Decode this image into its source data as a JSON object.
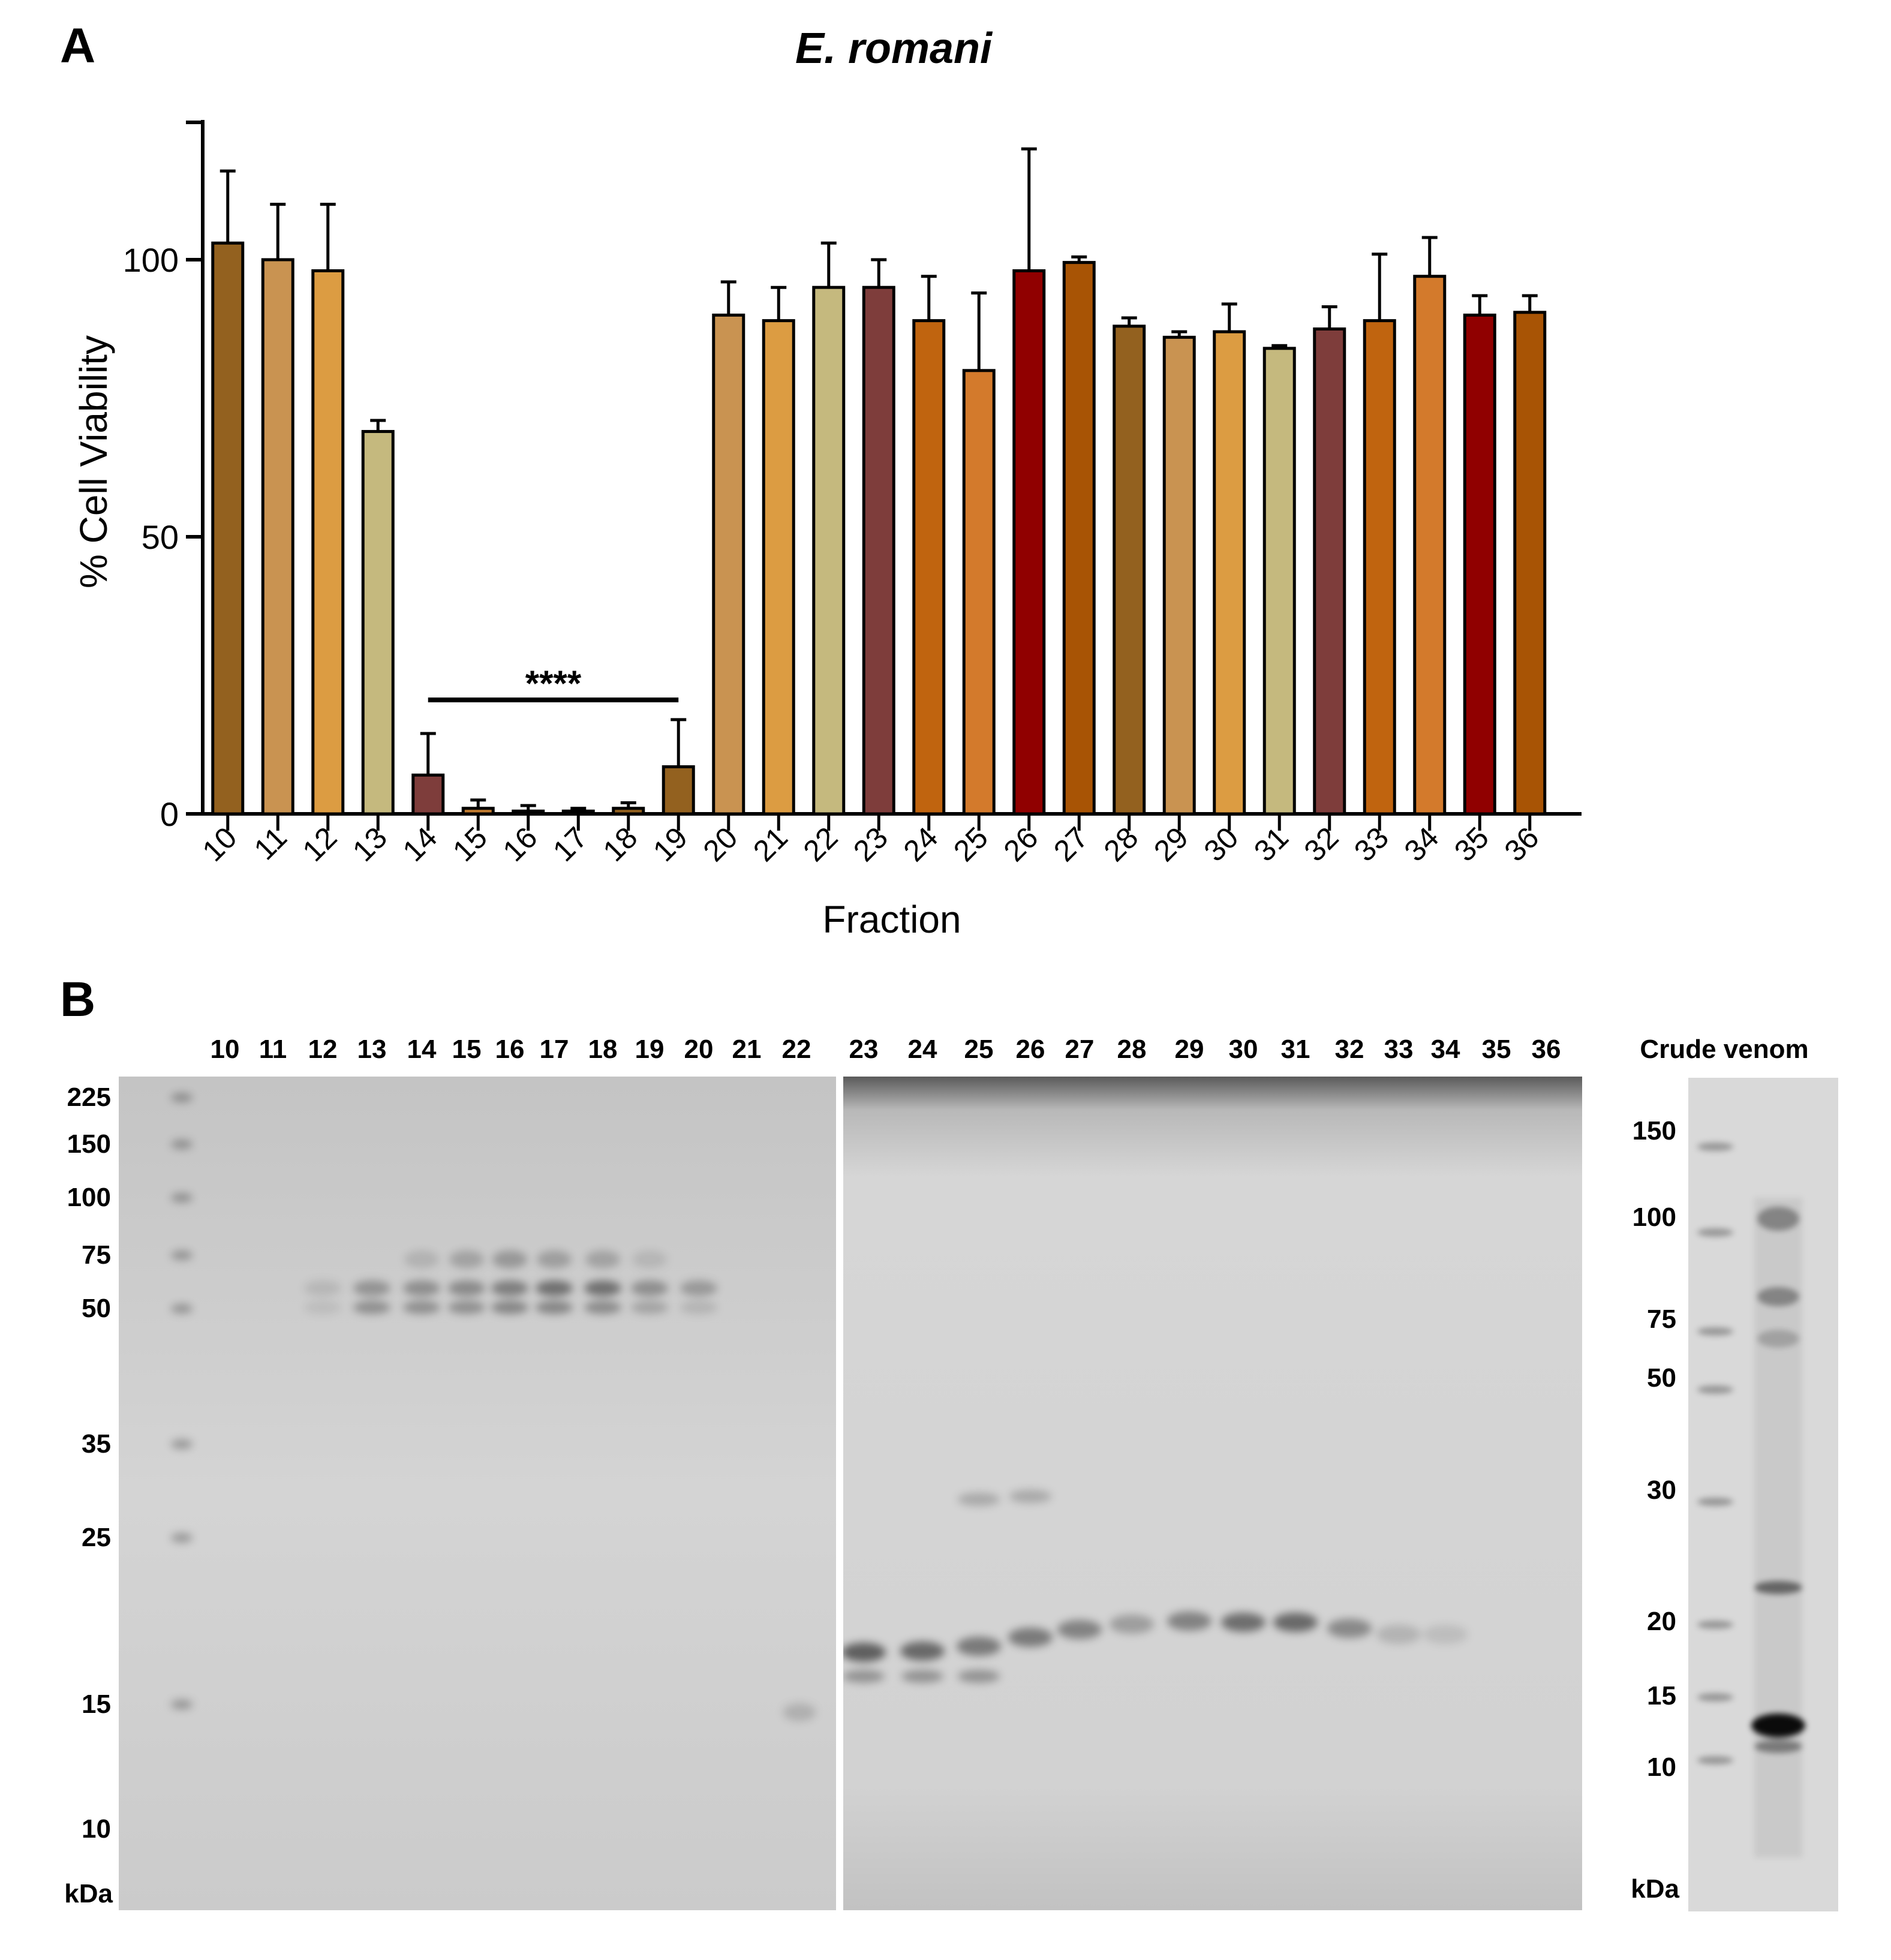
{
  "panels": {
    "a_label": "A",
    "b_label": "B"
  },
  "chart_data": {
    "type": "bar",
    "title": "E. romani",
    "xlabel": "Fraction",
    "ylabel": "% Cell Viability",
    "ylim": [
      0,
      125
    ],
    "yticks": [
      "0",
      "50",
      "100"
    ],
    "categories": [
      "10",
      "11",
      "12",
      "13",
      "14",
      "15",
      "16",
      "17",
      "18",
      "19",
      "20",
      "21",
      "22",
      "23",
      "24",
      "25",
      "26",
      "27",
      "28",
      "29",
      "30",
      "31",
      "32",
      "33",
      "34",
      "35",
      "36"
    ],
    "values": [
      103,
      100,
      98,
      69,
      7,
      1,
      0.5,
      0.5,
      1,
      8.5,
      90,
      89,
      95,
      95,
      89,
      80,
      98,
      99.5,
      88,
      86,
      87,
      84,
      87.5,
      89,
      97,
      90,
      90.5
    ],
    "errors": [
      13,
      10,
      12,
      2,
      7.5,
      1.5,
      1,
      0.5,
      1,
      8.5,
      6,
      6,
      8,
      5,
      8,
      14,
      22,
      1,
      1.5,
      1,
      5,
      0.5,
      4,
      12,
      7,
      3.5,
      3
    ],
    "bar_colors": [
      "#93611f",
      "#c99351",
      "#dc9c42",
      "#c5b97e",
      "#7e3d3b",
      "#c27c30",
      "#a85712",
      "#c0682a",
      "#93611f",
      "#93611f",
      "#c99351",
      "#dc9c42",
      "#c5b97e",
      "#7e3d3b",
      "#c0640f",
      "#d37a2c",
      "#900000",
      "#a85405",
      "#93611f",
      "#c99351",
      "#dc9c42",
      "#c5b97e",
      "#7e3d3b",
      "#c0640f",
      "#d37a2c",
      "#900000",
      "#a85405"
    ],
    "significance": {
      "label": "****",
      "from": "14",
      "to": "19"
    }
  },
  "gel": {
    "lanes_left": [
      "10",
      "11",
      "12",
      "13",
      "14",
      "15",
      "16",
      "17",
      "18",
      "19",
      "20",
      "21",
      "22"
    ],
    "lanes_right": [
      "23",
      "24",
      "25",
      "26",
      "27",
      "28",
      "29",
      "30",
      "31",
      "32",
      "33",
      "34",
      "35",
      "36"
    ],
    "markers_main": [
      "225",
      "150",
      "100",
      "75",
      "50",
      "35",
      "25",
      "15",
      "10"
    ],
    "unit": "kDa",
    "crude_title": "Crude venom",
    "markers_crude": [
      "150",
      "100",
      "75",
      "50",
      "30",
      "20",
      "15",
      "10"
    ]
  }
}
